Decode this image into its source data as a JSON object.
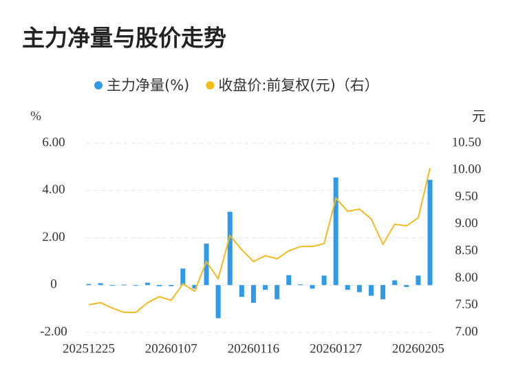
{
  "chart_data": {
    "type": "bar-line",
    "title": "主力净量与股价走势",
    "y_label": "%",
    "y2_label": "元",
    "categories": [
      "20251225",
      null,
      null,
      null,
      null,
      null,
      null,
      "20260107",
      null,
      null,
      null,
      null,
      null,
      null,
      "20260116",
      null,
      null,
      null,
      null,
      null,
      null,
      "20260127",
      null,
      null,
      null,
      null,
      null,
      null,
      "20260205",
      null
    ],
    "series": [
      {
        "name": "主力净量(%)",
        "type": "bar",
        "color": "#2f9be8",
        "values": [
          0.05,
          0.08,
          -0.03,
          0.02,
          -0.02,
          0.1,
          -0.05,
          -0.05,
          0.7,
          -0.15,
          1.75,
          -1.4,
          3.1,
          -0.5,
          -0.75,
          -0.2,
          -0.6,
          0.42,
          0.03,
          -0.15,
          0.4,
          4.55,
          -0.2,
          -0.3,
          -0.45,
          -0.6,
          0.2,
          -0.08,
          0.4,
          4.45
        ]
      },
      {
        "name": "收盘价:前复权(元)（右）",
        "type": "line",
        "axis": "y2",
        "color": "#f5b91e",
        "values": [
          7.51,
          7.55,
          7.45,
          7.37,
          7.37,
          7.55,
          7.66,
          7.59,
          7.9,
          7.76,
          8.31,
          7.99,
          8.79,
          8.53,
          8.31,
          8.42,
          8.36,
          8.51,
          8.59,
          8.59,
          8.64,
          9.48,
          9.24,
          9.28,
          9.1,
          8.63,
          9.0,
          8.97,
          9.12,
          10.04
        ]
      }
    ],
    "ylim": [
      -2,
      6
    ],
    "yticks": [
      {
        "value": -2,
        "label": "-2.00"
      },
      0,
      {
        "value": 2,
        "label": "2.00"
      },
      {
        "value": 4,
        "label": "4.00"
      },
      {
        "value": 6,
        "label": "6.00"
      }
    ],
    "y2lim": [
      7,
      10.5
    ],
    "y2ticks": [
      {
        "value": 7,
        "label": "7.00"
      },
      {
        "value": 7.5,
        "label": "7.50"
      },
      {
        "value": 8,
        "label": "8.00"
      },
      {
        "value": 8.5,
        "label": "8.50"
      },
      {
        "value": 9,
        "label": "9.00"
      },
      {
        "value": 9.5,
        "label": "9.50"
      },
      {
        "value": 10,
        "label": "10.00"
      },
      {
        "value": 10.5,
        "label": "10.50"
      }
    ],
    "grid": true,
    "legend": "top"
  }
}
